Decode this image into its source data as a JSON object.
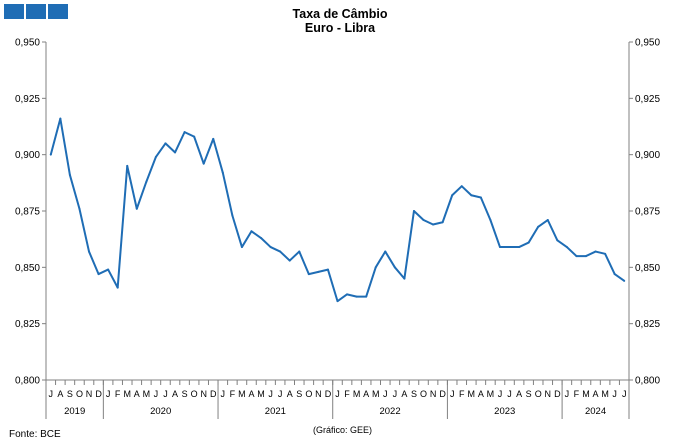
{
  "logo": {
    "squares": 3,
    "color": "#1f6db5"
  },
  "header": {
    "title_line1": "Taxa de Câmbio",
    "title_line2": "Euro - Libra"
  },
  "footer": {
    "source": "Fonte: BCE",
    "credit": "(Gráfico: GEE)"
  },
  "chart_data": {
    "type": "line",
    "title": "Taxa de Câmbio Euro - Libra",
    "line_color": "#1f6db5",
    "ylim": [
      0.8,
      0.95
    ],
    "y_ticks": [
      "0,800",
      "0,825",
      "0,850",
      "0,875",
      "0,900",
      "0,925",
      "0,950"
    ],
    "y_axis_mirrored": true,
    "grid": false,
    "month_labels": [
      "J",
      "A",
      "S",
      "O",
      "N",
      "D",
      "J",
      "F",
      "M",
      "A",
      "M",
      "J",
      "J",
      "A",
      "S",
      "O",
      "N",
      "D",
      "J",
      "F",
      "M",
      "A",
      "M",
      "J",
      "J",
      "A",
      "S",
      "O",
      "N",
      "D",
      "J",
      "F",
      "M",
      "A",
      "M",
      "J",
      "J",
      "A",
      "S",
      "O",
      "N",
      "D",
      "J",
      "F",
      "M",
      "A",
      "M",
      "J",
      "J",
      "A",
      "S",
      "O",
      "N",
      "D",
      "J",
      "F",
      "M",
      "A",
      "M",
      "J",
      "J"
    ],
    "years": [
      {
        "label": "2019",
        "months": 6
      },
      {
        "label": "2020",
        "months": 12
      },
      {
        "label": "2021",
        "months": 12
      },
      {
        "label": "2022",
        "months": 12
      },
      {
        "label": "2023",
        "months": 12
      },
      {
        "label": "2024",
        "months": 7
      }
    ],
    "series": [
      {
        "values": [
          0.9,
          0.916,
          0.891,
          0.876,
          0.857,
          0.847,
          0.849,
          0.841,
          0.895,
          0.876,
          0.888,
          0.899,
          0.905,
          0.901,
          0.91,
          0.908,
          0.896,
          0.907,
          0.892,
          0.873,
          0.859,
          0.866,
          0.863,
          0.859,
          0.857,
          0.853,
          0.857,
          0.847,
          0.848,
          0.849,
          0.835,
          0.838,
          0.837,
          0.837,
          0.85,
          0.857,
          0.85,
          0.845,
          0.875,
          0.871,
          0.869,
          0.87,
          0.882,
          0.886,
          0.882,
          0.881,
          0.871,
          0.859,
          0.859,
          0.859,
          0.861,
          0.868,
          0.871,
          0.862,
          0.859,
          0.855,
          0.855,
          0.857,
          0.856,
          0.847,
          0.844
        ]
      }
    ]
  }
}
